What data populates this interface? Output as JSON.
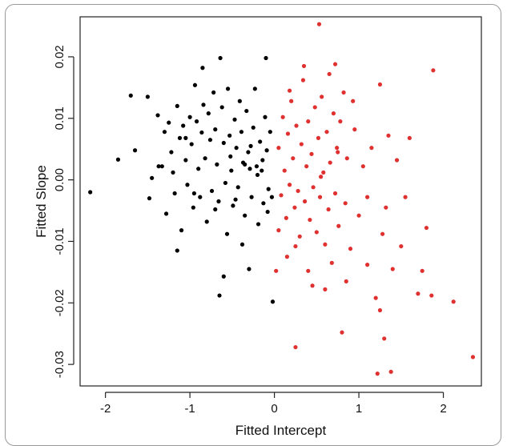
{
  "chart_data": {
    "type": "scatter",
    "title": "",
    "xlabel": "Fitted Intercept",
    "ylabel": "Fitted Slope",
    "xlim": [
      -2.3,
      2.45
    ],
    "ylim": [
      -0.0335,
      0.0265
    ],
    "xticks": [
      -2,
      -1,
      0,
      1,
      2
    ],
    "xtick_labels": [
      "-2",
      "-1",
      "0",
      "1",
      "2"
    ],
    "yticks": [
      -0.03,
      -0.02,
      -0.01,
      0.0,
      0.01,
      0.02
    ],
    "ytick_labels": [
      "-0.03",
      "-0.02",
      "-0.01",
      "0.00",
      "0.01",
      "0.02"
    ],
    "grid": false,
    "legend": "none",
    "series": [
      {
        "color": "#000000",
        "points": [
          [
            -2.18,
            -0.002
          ],
          [
            -1.85,
            0.0033
          ],
          [
            -1.7,
            0.0137
          ],
          [
            -1.65,
            0.0048
          ],
          [
            -1.5,
            0.0135
          ],
          [
            -1.48,
            -0.003
          ],
          [
            -1.45,
            0.0003
          ],
          [
            -1.38,
            0.0105
          ],
          [
            -1.33,
            0.0022
          ],
          [
            -1.3,
            0.0078
          ],
          [
            -1.28,
            -0.0055
          ],
          [
            -1.25,
            0.0093
          ],
          [
            -1.22,
            0.0045
          ],
          [
            -1.2,
            0.0012
          ],
          [
            -1.18,
            -0.0022
          ],
          [
            -1.15,
            0.012
          ],
          [
            -1.12,
            0.0068
          ],
          [
            -1.1,
            -0.0082
          ],
          [
            -1.08,
            0.0088
          ],
          [
            -1.05,
            0.0032
          ],
          [
            -1.03,
            -0.0008
          ],
          [
            -1.0,
            0.0102
          ],
          [
            -0.98,
            0.0058
          ],
          [
            -0.96,
            -0.0045
          ],
          [
            -0.94,
            0.0154
          ],
          [
            -0.92,
            0.0095
          ],
          [
            -0.9,
            0.0018
          ],
          [
            -0.88,
            -0.0028
          ],
          [
            -0.86,
            0.0077
          ],
          [
            -0.84,
            0.0122
          ],
          [
            -0.82,
            0.0035
          ],
          [
            -0.8,
            -0.0068
          ],
          [
            -0.78,
            0.0108
          ],
          [
            -0.76,
            0.0065
          ],
          [
            -0.74,
            -0.0018
          ],
          [
            -0.72,
            0.0142
          ],
          [
            -0.7,
            0.0082
          ],
          [
            -0.68,
            0.0025
          ],
          [
            -0.66,
            -0.0035
          ],
          [
            -0.64,
            0.0198
          ],
          [
            -0.62,
            0.0118
          ],
          [
            -0.6,
            0.006
          ],
          [
            -0.58,
            -0.0005
          ],
          [
            -0.56,
            -0.0088
          ],
          [
            -0.55,
            0.0148
          ],
          [
            -0.53,
            0.0072
          ],
          [
            -0.51,
            0.0015
          ],
          [
            -0.49,
            -0.0042
          ],
          [
            -0.47,
            0.0098
          ],
          [
            -0.45,
            0.0052
          ],
          [
            -0.43,
            -0.0012
          ],
          [
            -0.41,
            0.0128
          ],
          [
            -0.39,
            0.0078
          ],
          [
            -0.37,
            0.0028
          ],
          [
            -0.35,
            -0.0058
          ],
          [
            -0.33,
            0.0112
          ],
          [
            -0.31,
            0.0045
          ],
          [
            -0.29,
            0.0018
          ],
          [
            -0.27,
            -0.0028
          ],
          [
            -0.25,
            0.0085
          ],
          [
            -0.23,
            0.0148
          ],
          [
            -0.21,
            0.0022
          ],
          [
            -0.19,
            -0.0072
          ],
          [
            -0.17,
            0.0062
          ],
          [
            -0.15,
            0.0015
          ],
          [
            -0.13,
            -0.0038
          ],
          [
            -0.11,
            0.0102
          ],
          [
            -0.09,
            0.0048
          ],
          [
            -0.07,
            -0.0015
          ],
          [
            -0.05,
            0.0078
          ],
          [
            -0.03,
            -0.0028
          ],
          [
            -0.02,
            -0.0198
          ],
          [
            -0.1,
            0.0198
          ],
          [
            -0.65,
            -0.0188
          ],
          [
            -1.15,
            -0.0115
          ],
          [
            -0.6,
            -0.0157
          ],
          [
            -1.37,
            0.0022
          ],
          [
            -0.85,
            0.0182
          ],
          [
            -0.3,
            -0.0145
          ],
          [
            -0.46,
            -0.0032
          ],
          [
            -0.2,
            0.0008
          ],
          [
            -0.38,
            -0.0105
          ],
          [
            -0.14,
            0.0032
          ],
          [
            -0.95,
            -0.0022
          ],
          [
            -0.52,
            0.0038
          ],
          [
            -0.28,
            0.0055
          ],
          [
            -0.08,
            -0.0052
          ],
          [
            -0.7,
            -0.0048
          ],
          [
            -1.05,
            0.0068
          ],
          [
            -0.35,
            0.0025
          ]
        ]
      },
      {
        "color": "#e03131",
        "points": [
          [
            0.25,
            -0.0272
          ],
          [
            0.53,
            0.0253
          ],
          [
            0.72,
            0.0188
          ],
          [
            0.02,
            -0.0148
          ],
          [
            0.05,
            0.0052
          ],
          [
            0.08,
            -0.0025
          ],
          [
            0.1,
            0.0102
          ],
          [
            0.12,
            0.0015
          ],
          [
            0.14,
            -0.0062
          ],
          [
            0.16,
            0.0075
          ],
          [
            0.18,
            -0.0008
          ],
          [
            0.2,
            0.0128
          ],
          [
            0.22,
            0.0035
          ],
          [
            0.24,
            -0.0045
          ],
          [
            0.26,
            0.0088
          ],
          [
            0.28,
            -0.0018
          ],
          [
            0.3,
            -0.0092
          ],
          [
            0.32,
            0.0058
          ],
          [
            0.34,
            0.0162
          ],
          [
            0.36,
            -0.0035
          ],
          [
            0.38,
            0.0022
          ],
          [
            0.4,
            0.0095
          ],
          [
            0.42,
            -0.0065
          ],
          [
            0.44,
            0.0042
          ],
          [
            0.46,
            -0.0012
          ],
          [
            0.48,
            0.0118
          ],
          [
            0.5,
            -0.0085
          ],
          [
            0.52,
            0.0068
          ],
          [
            0.54,
            -0.0028
          ],
          [
            0.56,
            0.0135
          ],
          [
            0.58,
            0.0012
          ],
          [
            0.6,
            -0.0105
          ],
          [
            0.62,
            0.0078
          ],
          [
            0.64,
            -0.0048
          ],
          [
            0.66,
            0.0028
          ],
          [
            0.68,
            -0.0135
          ],
          [
            0.7,
            0.0108
          ],
          [
            0.72,
            -0.0022
          ],
          [
            0.74,
            0.0052
          ],
          [
            0.76,
            -0.0075
          ],
          [
            0.78,
            0.0095
          ],
          [
            0.8,
            -0.0248
          ],
          [
            0.82,
            0.0142
          ],
          [
            0.84,
            -0.0038
          ],
          [
            0.86,
            0.0035
          ],
          [
            0.9,
            -0.0112
          ],
          [
            0.95,
            0.0082
          ],
          [
            1.0,
            -0.0058
          ],
          [
            1.05,
            0.0022
          ],
          [
            1.1,
            -0.0138
          ],
          [
            1.15,
            0.0052
          ],
          [
            1.2,
            -0.0192
          ],
          [
            1.22,
            -0.0315
          ],
          [
            1.25,
            0.0155
          ],
          [
            1.28,
            -0.0088
          ],
          [
            1.32,
            -0.0045
          ],
          [
            1.35,
            0.0072
          ],
          [
            1.38,
            -0.0312
          ],
          [
            1.4,
            -0.0145
          ],
          [
            1.45,
            0.0032
          ],
          [
            1.5,
            -0.0108
          ],
          [
            1.55,
            -0.0028
          ],
          [
            1.6,
            0.0068
          ],
          [
            1.7,
            -0.0185
          ],
          [
            1.75,
            -0.0148
          ],
          [
            1.8,
            -0.0078
          ],
          [
            1.86,
            -0.0188
          ],
          [
            1.88,
            0.0178
          ],
          [
            2.12,
            -0.0198
          ],
          [
            2.35,
            -0.0288
          ],
          [
            0.45,
            -0.0172
          ],
          [
            0.6,
            -0.0178
          ],
          [
            0.15,
            -0.0125
          ],
          [
            0.35,
            0.0185
          ],
          [
            0.93,
            0.0128
          ],
          [
            1.1,
            -0.0028
          ],
          [
            0.75,
            0.0045
          ],
          [
            1.3,
            -0.0258
          ],
          [
            0.25,
            -0.0108
          ],
          [
            0.55,
            0.0005
          ],
          [
            0.4,
            -0.0148
          ],
          [
            1.25,
            -0.0212
          ],
          [
            0.85,
            -0.0165
          ],
          [
            0.05,
            -0.0082
          ],
          [
            0.18,
            0.0145
          ],
          [
            0.65,
            0.0172
          ]
        ]
      }
    ]
  }
}
